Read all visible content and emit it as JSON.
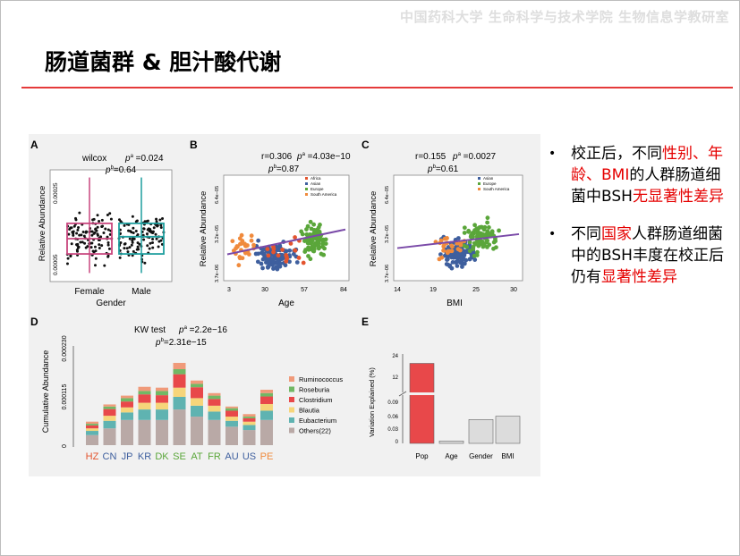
{
  "header": {
    "institution": "中国药科大学 生命科学与技术学院 生物信息学教研室"
  },
  "title": "肠道菌群 & 胆汁酸代谢",
  "colors": {
    "rule": "#e53a3a",
    "highlight": "#e50000",
    "trend": "#7a4aa8",
    "africa": "#e3542e",
    "asian": "#3e5f9e",
    "europe": "#5aa63a",
    "south_america": "#f08a3c"
  },
  "bullets": [
    {
      "parts": [
        {
          "text": "校正后，不同",
          "red": false
        },
        {
          "text": "性别、年龄、BMI",
          "red": true
        },
        {
          "text": "的人群肠道细菌中BSH",
          "red": false
        },
        {
          "text": "无显著性差异",
          "red": true
        }
      ]
    },
    {
      "parts": [
        {
          "text": "不同",
          "red": false
        },
        {
          "text": "国家",
          "red": true
        },
        {
          "text": "人群肠道细菌中的BSH丰度在校正后仍有",
          "red": false
        },
        {
          "text": "显著性差异",
          "red": true
        }
      ]
    }
  ],
  "panels": {
    "A": {
      "letter": "A",
      "test": "wilcox",
      "p1": "p",
      "p1_sup": "a",
      "p1_val": " =0.024",
      "p2": "p",
      "p2_sup": "b",
      "p2_val": "=0.64",
      "ylabel": "Relative Abundance",
      "xlabel": "Gender",
      "yticks": [
        "0.00005",
        "0.00025"
      ],
      "categories": [
        "Female",
        "Male"
      ]
    },
    "B": {
      "letter": "B",
      "stat": "r=0.306",
      "p1": "p",
      "p1_sup": "a",
      "p1_val": " =4.03e−10",
      "p2": "p",
      "p2_sup": "b",
      "p2_val": "=0.87",
      "ylabel": "Relative Abundance",
      "xlabel": "Age",
      "yticks": [
        "3.7e−06",
        "3.2e−05",
        "6.4e−05"
      ],
      "xticks": [
        "3",
        "30",
        "57",
        "84"
      ],
      "legend": [
        "Africa",
        "Asian",
        "Europe",
        "South America"
      ]
    },
    "C": {
      "letter": "C",
      "stat": "r=0.155",
      "p1": "p",
      "p1_sup": "a",
      "p1_val": " =0.0027",
      "p2": "p",
      "p2_sup": "b",
      "p2_val": "=0.61",
      "ylabel": "Relative Abundance",
      "xlabel": "BMI",
      "yticks": [
        "3.7e−06",
        "3.2e−05",
        "6.4e−05"
      ],
      "xticks": [
        "14",
        "19",
        "25",
        "30"
      ],
      "legend": [
        "Asian",
        "Europe",
        "South America"
      ]
    },
    "D": {
      "letter": "D",
      "test": "KW test",
      "p1": "p",
      "p1_sup": "a",
      "p1_val": " =2.2e−16",
      "p2": "p",
      "p2_sup": "b",
      "p2_val": "=2.31e−15",
      "ylabel": "Cumulative Abundance",
      "yticks": [
        "0",
        "0.000115",
        "0.000230"
      ]
    },
    "E": {
      "letter": "E",
      "ylabel": "Variation Explained (%)",
      "yticks_top": [
        "12",
        "24"
      ],
      "yticks_bottom": [
        "0",
        "0.03",
        "0.06",
        "0.09"
      ]
    }
  },
  "chart_data": [
    {
      "type": "bar",
      "panel": "D",
      "stacked": true,
      "categories": [
        "HZ",
        "CN",
        "JP",
        "KR",
        "DK",
        "SE",
        "AT",
        "FR",
        "AU",
        "US",
        "PE"
      ],
      "category_colors": [
        "#e3542e",
        "#3e5f9e",
        "#3e5f9e",
        "#3e5f9e",
        "#5aa63a",
        "#5aa63a",
        "#5aa63a",
        "#5aa63a",
        "#3e5f9e",
        "#3e5f9e",
        "#f08a3c"
      ],
      "ylim": [
        0,
        0.00023
      ],
      "series": [
        {
          "name": "Others(22)",
          "color": "#b9a9a6",
          "values": [
            2.4e-05,
            4e-05,
            6e-05,
            6e-05,
            6e-05,
            8.5e-05,
            6.8e-05,
            6e-05,
            4.4e-05,
            3.6e-05,
            6e-05
          ]
        },
        {
          "name": "Eubacterium",
          "color": "#5fb3b1",
          "values": [
            1e-05,
            1.8e-05,
            1.8e-05,
            2.5e-05,
            2.5e-05,
            3e-05,
            2.6e-05,
            2e-05,
            1.4e-05,
            1.2e-05,
            2.2e-05
          ]
        },
        {
          "name": "Blautia",
          "color": "#f6d57a",
          "values": [
            6e-06,
            1.2e-05,
            1.2e-05,
            1.6e-05,
            1.6e-05,
            2.2e-05,
            1.8e-05,
            1.4e-05,
            1e-05,
            8e-06,
            1.6e-05
          ]
        },
        {
          "name": "Clostridium",
          "color": "#e8484a",
          "values": [
            7e-06,
            1.6e-05,
            1.4e-05,
            2e-05,
            1.8e-05,
            3.2e-05,
            2.6e-05,
            1.6e-05,
            1.4e-05,
            8e-06,
            1.8e-05
          ]
        },
        {
          "name": "Roseburia",
          "color": "#71b865",
          "values": [
            4e-06,
            6e-06,
            8e-06,
            8e-06,
            1e-05,
            1.2e-05,
            8e-06,
            8e-06,
            6e-06,
            4e-06,
            8e-06
          ]
        },
        {
          "name": "Ruminococcus",
          "color": "#f09a7a",
          "values": [
            5e-06,
            5e-06,
            6e-06,
            1e-05,
            8e-06,
            1.5e-05,
            8e-06,
            6e-06,
            4e-06,
            6e-06,
            8e-06
          ]
        }
      ]
    },
    {
      "type": "bar",
      "panel": "E",
      "categories": [
        "Pop",
        "Age",
        "Gender",
        "BMI"
      ],
      "values": [
        22.5,
        0.005,
        0.05,
        0.057
      ],
      "colors": [
        "#e8484a",
        "#dcdcdc",
        "#dcdcdc",
        "#dcdcdc"
      ],
      "ylabel": "Variation Explained (%)"
    },
    {
      "type": "scatter",
      "panel": "A",
      "categories": [
        "Female",
        "Male"
      ],
      "box": {
        "Female": {
          "q1": 7e-05,
          "median": 0.00011,
          "q3": 0.00015,
          "whisker_low": 2e-05,
          "whisker_high": 0.00027
        },
        "Male": {
          "q1": 7e-05,
          "median": 0.000115,
          "q3": 0.00015,
          "whisker_low": 2e-05,
          "whisker_high": 0.00027
        }
      },
      "box_colors": [
        "#c8467e",
        "#1e9e9e"
      ]
    },
    {
      "type": "scatter",
      "panel": "B",
      "x_label": "Age",
      "xlim": [
        3,
        84
      ],
      "trend": {
        "from": [
          3,
          1.7e-05
        ],
        "to": [
          84,
          3.3e-05
        ]
      },
      "series": [
        {
          "name": "Africa"
        },
        {
          "name": "Asian"
        },
        {
          "name": "Europe"
        },
        {
          "name": "South America"
        }
      ]
    },
    {
      "type": "scatter",
      "panel": "C",
      "x_label": "BMI",
      "xlim": [
        14,
        30
      ],
      "trend": {
        "from": [
          14,
          2.1e-05
        ],
        "to": [
          30,
          3e-05
        ]
      },
      "series": [
        {
          "name": "Asian"
        },
        {
          "name": "Europe"
        },
        {
          "name": "South America"
        }
      ]
    }
  ]
}
